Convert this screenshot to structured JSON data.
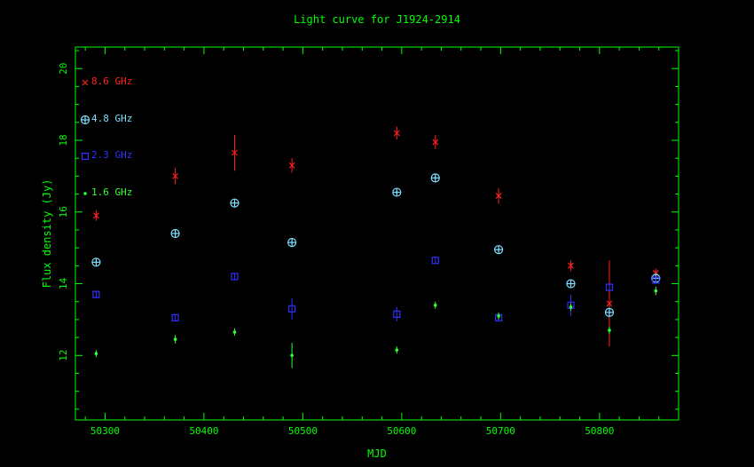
{
  "chart_data": {
    "type": "scatter",
    "title": "Light curve for J1924-2914",
    "xlabel": "MJD",
    "ylabel": "Flux density (Jy)",
    "xlim": [
      50270,
      50880
    ],
    "ylim": [
      10.2,
      20.6
    ],
    "x_ticks": [
      50300,
      50400,
      50500,
      50600,
      50700,
      50800
    ],
    "y_ticks": [
      12,
      14,
      16,
      18,
      20
    ],
    "grid": false,
    "legend_placement": "top-left",
    "colors": {
      "background": "#000000",
      "axes": "#00ff00",
      "labels": "#00ff00",
      "title": "#00ff00"
    },
    "series": [
      {
        "name": "8.6 GHz",
        "color": "#ff2020",
        "marker": "x",
        "points": [
          {
            "x": 50291,
            "y": 15.9,
            "err": 0.15
          },
          {
            "x": 50371,
            "y": 17.0,
            "err": 0.22
          },
          {
            "x": 50431,
            "y": 17.65,
            "err": 0.5
          },
          {
            "x": 50489,
            "y": 17.3,
            "err": 0.2
          },
          {
            "x": 50595,
            "y": 18.2,
            "err": 0.18
          },
          {
            "x": 50634,
            "y": 17.95,
            "err": 0.2
          },
          {
            "x": 50698,
            "y": 16.45,
            "err": 0.22
          },
          {
            "x": 50771,
            "y": 14.5,
            "err": 0.15
          },
          {
            "x": 50810,
            "y": 13.45,
            "err": 1.2
          },
          {
            "x": 50857,
            "y": 14.3,
            "err": 0.12
          }
        ]
      },
      {
        "name": "4.8 GHz",
        "color": "#7fdfff",
        "marker": "circle-plus",
        "points": [
          {
            "x": 50291,
            "y": 14.6,
            "err": 0.05
          },
          {
            "x": 50371,
            "y": 15.4,
            "err": 0.05
          },
          {
            "x": 50431,
            "y": 16.25,
            "err": 0.05
          },
          {
            "x": 50489,
            "y": 15.15,
            "err": 0.05
          },
          {
            "x": 50595,
            "y": 16.55,
            "err": 0.05
          },
          {
            "x": 50634,
            "y": 16.95,
            "err": 0.05
          },
          {
            "x": 50698,
            "y": 14.95,
            "err": 0.05
          },
          {
            "x": 50771,
            "y": 14.0,
            "err": 0.05
          },
          {
            "x": 50810,
            "y": 13.2,
            "err": 0.05
          },
          {
            "x": 50857,
            "y": 14.15,
            "err": 0.05
          }
        ]
      },
      {
        "name": "2.3 GHz",
        "color": "#3030ff",
        "marker": "square",
        "points": [
          {
            "x": 50291,
            "y": 13.7,
            "err": 0.08
          },
          {
            "x": 50371,
            "y": 13.05,
            "err": 0.1
          },
          {
            "x": 50431,
            "y": 14.2,
            "err": 0.08
          },
          {
            "x": 50489,
            "y": 13.3,
            "err": 0.3
          },
          {
            "x": 50595,
            "y": 13.15,
            "err": 0.2
          },
          {
            "x": 50634,
            "y": 14.65,
            "err": 0.08
          },
          {
            "x": 50698,
            "y": 13.05,
            "err": 0.08
          },
          {
            "x": 50771,
            "y": 13.4,
            "err": 0.3
          },
          {
            "x": 50810,
            "y": 13.9,
            "err": 0.1
          },
          {
            "x": 50857,
            "y": 14.1,
            "err": 0.1
          }
        ]
      },
      {
        "name": "1.6 GHz",
        "color": "#30ff30",
        "marker": "dot",
        "points": [
          {
            "x": 50291,
            "y": 12.05,
            "err": 0.1
          },
          {
            "x": 50371,
            "y": 12.45,
            "err": 0.12
          },
          {
            "x": 50431,
            "y": 12.65,
            "err": 0.1
          },
          {
            "x": 50489,
            "y": 12.0,
            "err": 0.35
          },
          {
            "x": 50595,
            "y": 12.15,
            "err": 0.1
          },
          {
            "x": 50634,
            "y": 13.4,
            "err": 0.1
          },
          {
            "x": 50698,
            "y": 13.1,
            "err": 0.1
          },
          {
            "x": 50771,
            "y": 13.35,
            "err": 0.1
          },
          {
            "x": 50810,
            "y": 12.7,
            "err": 0.1
          },
          {
            "x": 50857,
            "y": 13.8,
            "err": 0.12
          }
        ]
      }
    ]
  }
}
